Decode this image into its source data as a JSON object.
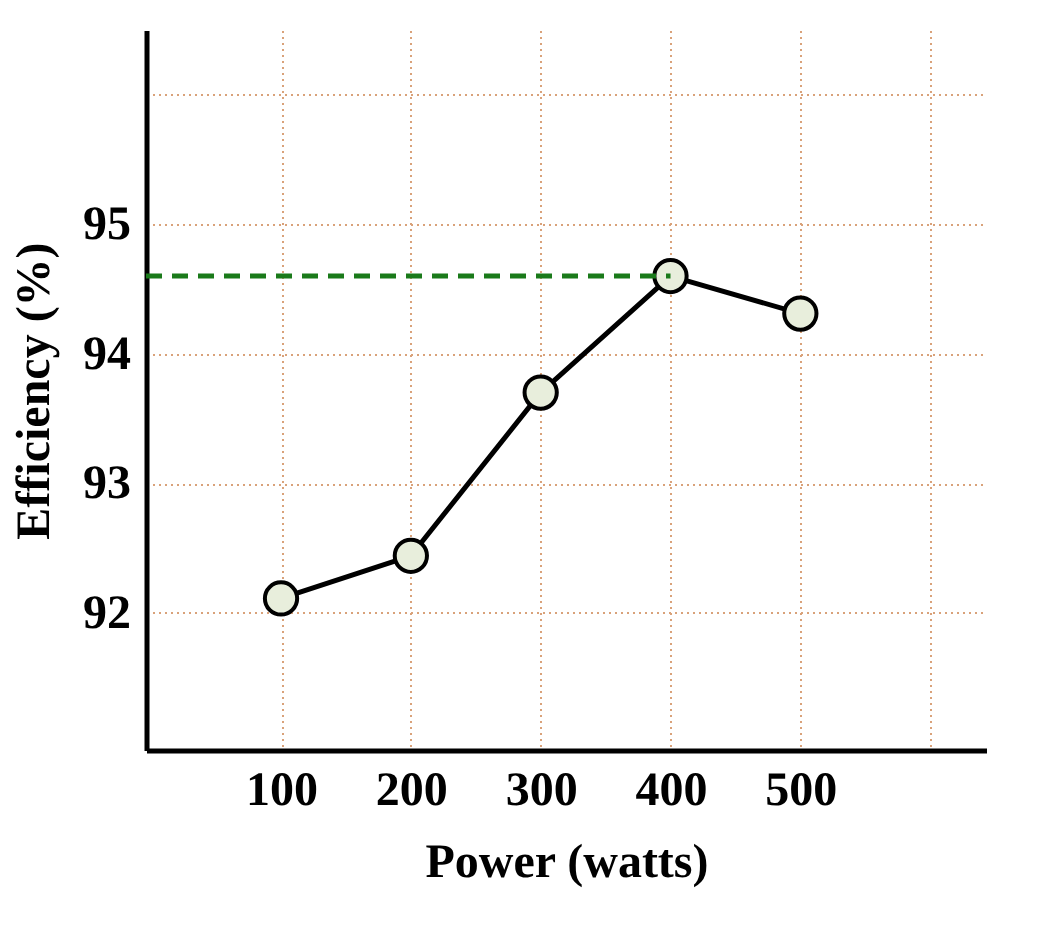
{
  "chart_data": {
    "type": "line",
    "xlabel": "Power (watts)",
    "ylabel": "Efficiency (%)",
    "x": [
      100,
      200,
      300,
      400,
      500
    ],
    "series": [
      {
        "color": "#000000",
        "values": [
          92.11,
          92.44,
          93.7,
          94.6,
          94.31
        ],
        "marker": "circle",
        "line_style": "solid"
      },
      {
        "type": "line",
        "color": "#1a7a1a",
        "x": [
          -4,
          400
        ],
        "values": [
          94.6,
          94.6
        ],
        "marker": "none",
        "line_style": "dashed"
      }
    ],
    "xlim": [
      -4,
      643
    ],
    "ylim": [
      90.94,
      96.5
    ],
    "xticks": [
      100,
      200,
      300,
      400,
      500,
      {
        "value": 600,
        "label": null
      }
    ],
    "yticks": [
      92,
      93,
      94,
      95,
      {
        "value": 96,
        "label": null
      }
    ],
    "grid": true
  }
}
